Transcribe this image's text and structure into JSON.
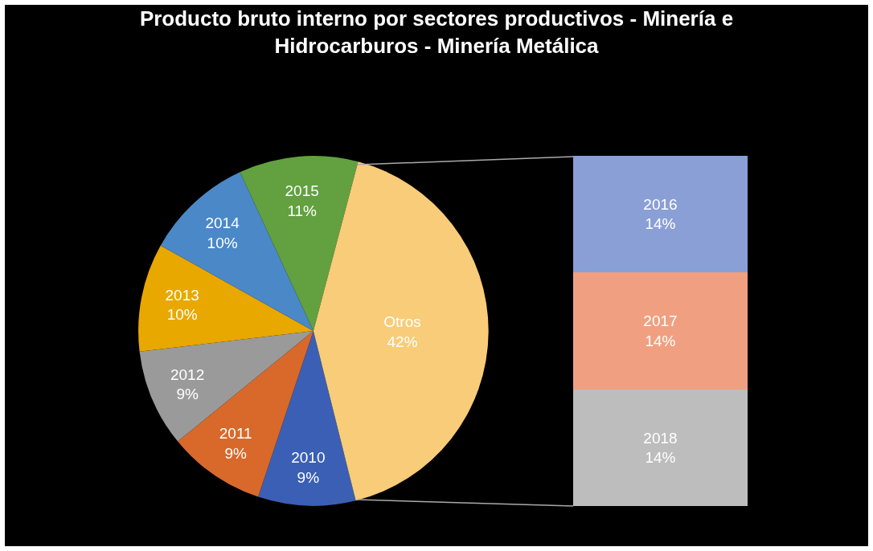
{
  "chart_data": [
    {
      "type": "pie",
      "title": "Producto bruto interno por sectores productivos - Minería e Hidrocarburos - Minería Metálica",
      "categories": [
        "2010",
        "2011",
        "2012",
        "2013",
        "2014",
        "2015",
        "Otros"
      ],
      "values": [
        9,
        9,
        9,
        10,
        10,
        11,
        42
      ],
      "value_labels": [
        "9%",
        "9%",
        "9%",
        "10%",
        "10%",
        "11%",
        "42%"
      ],
      "colors": [
        "#3a5fb5",
        "#d8692a",
        "#9a9a9a",
        "#e8a800",
        "#4a88c8",
        "#62a040",
        "#f8cc78"
      ]
    },
    {
      "type": "bar",
      "stacked": true,
      "categories": [
        null
      ],
      "series": [
        {
          "name": "2018",
          "color": "#bdbdbd",
          "values": [
            14
          ],
          "value_labels": [
            "14%"
          ]
        },
        {
          "name": "2017",
          "color": "#f0a080",
          "values": [
            14
          ],
          "value_labels": [
            "14%"
          ]
        },
        {
          "name": "2016",
          "color": "#8a9fd6",
          "values": [
            14
          ],
          "value_labels": [
            "14%"
          ]
        }
      ]
    }
  ]
}
